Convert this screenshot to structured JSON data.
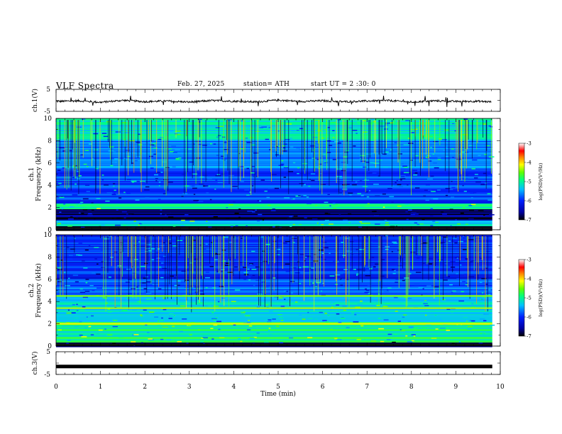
{
  "header": {
    "title": "VLF  Spectra",
    "date": "Feb. 27, 2025",
    "station": "station= ATH",
    "start": "start  UT  =   2  :30: 0"
  },
  "colors": {
    "spectrogram_background": "#2a9bff",
    "trace": "#000000",
    "axis": "#000000"
  },
  "chart_data": [
    {
      "type": "line",
      "ylabel": "ch.1(V)",
      "ylim": [
        -5,
        5
      ],
      "yticks": [
        "5",
        "-5"
      ],
      "x_range_min": [
        0,
        9.82
      ],
      "x": [
        0,
        0.5,
        1.0,
        1.5,
        2.0,
        2.5,
        3.0,
        3.5,
        4.0,
        4.5,
        5.0,
        5.5,
        6.0,
        6.5,
        7.0,
        7.5,
        8.0,
        8.5,
        9.0,
        9.5,
        9.8
      ],
      "y": [
        -0.5,
        -0.2,
        -0.9,
        0.0,
        -0.6,
        -0.3,
        -0.8,
        -0.1,
        -0.4,
        -0.7,
        0.1,
        -0.5,
        -0.2,
        -0.6,
        -0.3,
        -0.1,
        -0.8,
        -0.2,
        -0.5,
        -0.4,
        -0.7
      ],
      "description_color": "black noisy trace"
    },
    {
      "type": "heatmap",
      "ylabel_top": "ch.1",
      "ylabel": "Frequency  (kHz)",
      "ylim": [
        0,
        10
      ],
      "yticks": [
        "0",
        "2",
        "4",
        "6",
        "8",
        "10"
      ],
      "colorbar": {
        "label": "log(PSD)(V²/Hz)",
        "ticks": [
          "-3",
          "-4",
          "-5",
          "-6",
          "-7"
        ],
        "range": [
          -7,
          -3
        ]
      },
      "bands_khz": [
        {
          "from": 0.0,
          "to": 0.35,
          "level": -6.9
        },
        {
          "from": 0.35,
          "to": 0.9,
          "level": -5.2
        },
        {
          "from": 0.9,
          "to": 1.9,
          "level": -6.7
        },
        {
          "from": 1.9,
          "to": 2.4,
          "level": -5.0
        },
        {
          "from": 2.4,
          "to": 5.5,
          "level": -5.9
        },
        {
          "from": 5.5,
          "to": 8.0,
          "level": -5.6
        },
        {
          "from": 8.0,
          "to": 10.0,
          "level": -5.2
        }
      ]
    },
    {
      "type": "heatmap",
      "ylabel_top": "ch.2",
      "ylabel": "Frequency  (kHz)",
      "ylim": [
        0,
        10
      ],
      "yticks": [
        "0",
        "2",
        "4",
        "6",
        "8",
        "10"
      ],
      "colorbar": {
        "label": "log(PSD)(V²/Hz)",
        "ticks": [
          "-3",
          "-4",
          "-5",
          "-6",
          "-7"
        ],
        "range": [
          -7,
          -3
        ]
      },
      "bands_khz": [
        {
          "from": 0.0,
          "to": 0.4,
          "level": -6.8
        },
        {
          "from": 0.4,
          "to": 2.2,
          "level": -5.0
        },
        {
          "from": 2.2,
          "to": 4.6,
          "level": -5.3
        },
        {
          "from": 4.6,
          "to": 6.0,
          "level": -5.8
        },
        {
          "from": 6.0,
          "to": 10.0,
          "level": -6.0
        }
      ],
      "lines_khz": [
        {
          "f": 2.0,
          "level": -4.1
        },
        {
          "f": 3.4,
          "level": -4.3
        },
        {
          "f": 4.5,
          "level": -4.4
        }
      ]
    },
    {
      "type": "line",
      "ylabel": "ch.3(V)",
      "ylim": [
        -5,
        5
      ],
      "yticks": [
        "5",
        "-5"
      ],
      "x": [
        0,
        9.82
      ],
      "y": [
        -1.5,
        -1.5
      ],
      "xlabel": "Time  (min)",
      "xlim": [
        0,
        10
      ],
      "xticks": [
        "0",
        "1",
        "2",
        "3",
        "4",
        "5",
        "6",
        "7",
        "8",
        "9",
        "10"
      ]
    }
  ]
}
